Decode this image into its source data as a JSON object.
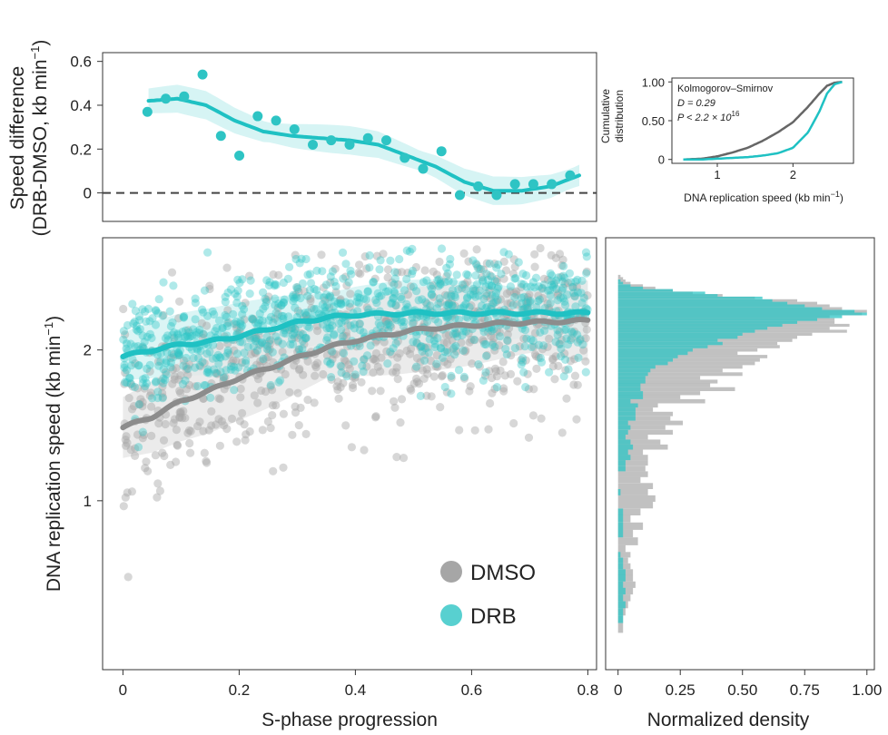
{
  "colors": {
    "dmso": "#a6a6a6",
    "dmso_line": "#8c8c8c",
    "drb": "#2ec4c4",
    "drb_line": "#1fc1c3",
    "drb_fill": "#d2f3f3",
    "dmso_fill": "#e6e6e6",
    "zero_line": "#444444"
  },
  "chart_data": [
    {
      "id": "speed_difference",
      "type": "scatter",
      "title": "",
      "ylabel_line1": "Speed difference",
      "ylabel_line2": "(DRB-DMSO, kb min",
      "ylabel_sup": "−1",
      "ylabel_close": ")",
      "xlim": [
        -0.03,
        0.83
      ],
      "ylim": [
        -0.13,
        0.64
      ],
      "yticks": [
        0,
        0.2,
        0.4,
        0.6
      ],
      "ytick_labels": [
        "0",
        "0.2",
        "0.4",
        "0.6"
      ],
      "reference_line": 0,
      "points": [
        {
          "x": 0.048,
          "y": 0.37
        },
        {
          "x": 0.08,
          "y": 0.43
        },
        {
          "x": 0.112,
          "y": 0.44
        },
        {
          "x": 0.144,
          "y": 0.54
        },
        {
          "x": 0.176,
          "y": 0.26
        },
        {
          "x": 0.208,
          "y": 0.17
        },
        {
          "x": 0.24,
          "y": 0.35
        },
        {
          "x": 0.272,
          "y": 0.33
        },
        {
          "x": 0.304,
          "y": 0.29
        },
        {
          "x": 0.336,
          "y": 0.22
        },
        {
          "x": 0.368,
          "y": 0.24
        },
        {
          "x": 0.4,
          "y": 0.22
        },
        {
          "x": 0.432,
          "y": 0.25
        },
        {
          "x": 0.464,
          "y": 0.24
        },
        {
          "x": 0.496,
          "y": 0.16
        },
        {
          "x": 0.528,
          "y": 0.11
        },
        {
          "x": 0.56,
          "y": 0.19
        },
        {
          "x": 0.592,
          "y": -0.01
        },
        {
          "x": 0.624,
          "y": 0.03
        },
        {
          "x": 0.656,
          "y": -0.01
        },
        {
          "x": 0.688,
          "y": 0.04
        },
        {
          "x": 0.72,
          "y": 0.04
        },
        {
          "x": 0.752,
          "y": 0.04
        },
        {
          "x": 0.784,
          "y": 0.08
        }
      ],
      "smooth": {
        "x": [
          0.05,
          0.1,
          0.15,
          0.2,
          0.25,
          0.3,
          0.35,
          0.4,
          0.45,
          0.5,
          0.55,
          0.6,
          0.65,
          0.7,
          0.75,
          0.8
        ],
        "y": [
          0.42,
          0.43,
          0.4,
          0.33,
          0.28,
          0.26,
          0.25,
          0.24,
          0.22,
          0.17,
          0.12,
          0.05,
          0.01,
          0.01,
          0.03,
          0.08
        ]
      }
    },
    {
      "id": "ks_inset",
      "type": "line",
      "xlabel": "DNA replication speed (kb min",
      "xlabel_sup": "−1",
      "xlabel_close": ")",
      "ylabel_line1": "Cumulative",
      "ylabel_line2": "distribution",
      "xlim": [
        0.4,
        2.8
      ],
      "ylim": [
        -0.05,
        1.05
      ],
      "xticks": [
        1,
        2
      ],
      "xtick_labels": [
        "1",
        "2"
      ],
      "yticks": [
        0,
        0.5,
        1.0
      ],
      "ytick_labels": [
        "0",
        "0.50",
        "1.00"
      ],
      "annotation_title": "Kolmogorov–Smirnov",
      "annotation_d": "D = 0.29",
      "annotation_p": "P < 2.2 × 10",
      "annotation_p_sup": "16",
      "series": [
        {
          "name": "DMSO",
          "x": [
            0.55,
            0.8,
            1.0,
            1.2,
            1.4,
            1.6,
            1.8,
            2.0,
            2.2,
            2.35,
            2.45,
            2.55,
            2.65
          ],
          "y": [
            0.0,
            0.01,
            0.04,
            0.09,
            0.15,
            0.24,
            0.35,
            0.48,
            0.68,
            0.85,
            0.95,
            0.99,
            1.0
          ]
        },
        {
          "name": "DRB",
          "x": [
            0.55,
            0.8,
            1.0,
            1.2,
            1.4,
            1.6,
            1.8,
            2.0,
            2.2,
            2.35,
            2.45,
            2.55,
            2.65
          ],
          "y": [
            0.0,
            0.0,
            0.01,
            0.02,
            0.03,
            0.05,
            0.08,
            0.15,
            0.35,
            0.62,
            0.85,
            0.97,
            1.0
          ]
        }
      ]
    },
    {
      "id": "speed_vs_progression",
      "type": "scatter",
      "xlabel": "S-phase progression",
      "ylabel": "DNA replication speed (kb min",
      "ylabel_sup": "−1",
      "ylabel_close": ")",
      "xlim": [
        -0.035,
        0.815
      ],
      "ylim_log": [
        0.46,
        3.35
      ],
      "xticks": [
        0,
        0.2,
        0.4,
        0.6,
        0.8
      ],
      "xtick_labels": [
        "0",
        "0.2",
        "0.4",
        "0.6",
        "0.8"
      ],
      "yticks": [
        1,
        2
      ],
      "ytick_labels": [
        "1",
        "2"
      ],
      "legend": [
        {
          "name": "DMSO"
        },
        {
          "name": "DRB"
        }
      ],
      "trend_lines": [
        {
          "name": "DMSO",
          "x": [
            0.0,
            0.05,
            0.1,
            0.15,
            0.2,
            0.25,
            0.3,
            0.35,
            0.4,
            0.45,
            0.5,
            0.55,
            0.6,
            0.65,
            0.7,
            0.75,
            0.8
          ],
          "y": [
            1.4,
            1.47,
            1.58,
            1.66,
            1.76,
            1.84,
            1.93,
            2.02,
            2.09,
            2.14,
            2.19,
            2.22,
            2.24,
            2.26,
            2.27,
            2.28,
            2.29
          ]
        },
        {
          "name": "DRB",
          "x": [
            0.0,
            0.05,
            0.1,
            0.15,
            0.2,
            0.25,
            0.3,
            0.35,
            0.4,
            0.45,
            0.5,
            0.55,
            0.6,
            0.65,
            0.7,
            0.75,
            0.8
          ],
          "y": [
            1.94,
            2.0,
            2.05,
            2.08,
            2.13,
            2.2,
            2.27,
            2.32,
            2.35,
            2.36,
            2.37,
            2.37,
            2.37,
            2.37,
            2.37,
            2.37,
            2.37
          ]
        }
      ],
      "scatter_summary": {
        "DMSO": {
          "n": 700,
          "sd_log": 0.2
        },
        "DRB": {
          "n": 900,
          "sd_log": 0.13
        }
      }
    },
    {
      "id": "density_histogram",
      "type": "bar",
      "orientation": "horizontal",
      "xlabel": "Normalized density",
      "xlim": [
        -0.05,
        1.03
      ],
      "xticks": [
        0,
        0.25,
        0.5,
        0.75,
        1.0
      ],
      "xtick_labels": [
        "0",
        "0.25",
        "0.50",
        "0.75",
        "1.00"
      ],
      "bins_speed": [
        0.56,
        0.58,
        0.6,
        0.62,
        0.64,
        0.66,
        0.68,
        0.7,
        0.72,
        0.74,
        0.76,
        0.78,
        0.8,
        0.83,
        0.86,
        0.89,
        0.92,
        0.95,
        0.98,
        1.01,
        1.04,
        1.07,
        1.1,
        1.13,
        1.16,
        1.19,
        1.22,
        1.25,
        1.28,
        1.31,
        1.34,
        1.37,
        1.4,
        1.43,
        1.46,
        1.49,
        1.52,
        1.55,
        1.58,
        1.61,
        1.64,
        1.67,
        1.7,
        1.73,
        1.76,
        1.79,
        1.82,
        1.85,
        1.88,
        1.91,
        1.94,
        1.97,
        2.0,
        2.03,
        2.06,
        2.09,
        2.12,
        2.15,
        2.18,
        2.21,
        2.24,
        2.27,
        2.3,
        2.33,
        2.36,
        2.39,
        2.42,
        2.45,
        2.48,
        2.51,
        2.54,
        2.57,
        2.6,
        2.63,
        2.66,
        2.69,
        2.72,
        2.75,
        2.78,
        2.81
      ],
      "series": [
        {
          "name": "DMSO",
          "values": [
            0.02,
            0.02,
            0.03,
            0.04,
            0.05,
            0.06,
            0.07,
            0.06,
            0.06,
            0.05,
            0.04,
            0.05,
            0.03,
            0.08,
            0.06,
            0.1,
            0.05,
            0.09,
            0.14,
            0.15,
            0.12,
            0.14,
            0.09,
            0.12,
            0.11,
            0.12,
            0.12,
            0.1,
            0.2,
            0.17,
            0.12,
            0.22,
            0.19,
            0.26,
            0.21,
            0.22,
            0.14,
            0.16,
            0.35,
            0.25,
            0.33,
            0.47,
            0.37,
            0.4,
            0.33,
            0.5,
            0.42,
            0.5,
            0.55,
            0.57,
            0.6,
            0.48,
            0.56,
            0.65,
            0.64,
            0.7,
            0.72,
            0.78,
            0.92,
            0.85,
            0.93,
            0.87,
            0.87,
            0.85,
            0.98,
            1.0,
            0.9,
            0.85,
            0.8,
            0.72,
            0.55,
            0.42,
            0.3,
            0.22,
            0.15,
            0.1,
            0.05,
            0.03,
            0.02,
            0.01
          ]
        },
        {
          "name": "DRB",
          "values": [
            0.0,
            0.02,
            0.02,
            0.03,
            0.02,
            0.03,
            0.02,
            0.03,
            0.03,
            0.02,
            0.02,
            0.01,
            0.0,
            0.0,
            0.02,
            0.02,
            0.02,
            0.02,
            0.0,
            0.0,
            0.01,
            0.0,
            0.0,
            0.0,
            0.03,
            0.03,
            0.05,
            0.04,
            0.06,
            0.05,
            0.03,
            0.04,
            0.05,
            0.04,
            0.07,
            0.07,
            0.07,
            0.08,
            0.05,
            0.1,
            0.1,
            0.09,
            0.09,
            0.11,
            0.11,
            0.12,
            0.13,
            0.15,
            0.2,
            0.22,
            0.24,
            0.28,
            0.3,
            0.36,
            0.42,
            0.4,
            0.48,
            0.5,
            0.55,
            0.6,
            0.66,
            0.72,
            0.8,
            0.9,
            1.0,
            0.95,
            0.82,
            0.75,
            0.68,
            0.62,
            0.58,
            0.4,
            0.35,
            0.22,
            0.1,
            0.05,
            0.02,
            0.01,
            0.0,
            0.0
          ]
        }
      ]
    }
  ]
}
